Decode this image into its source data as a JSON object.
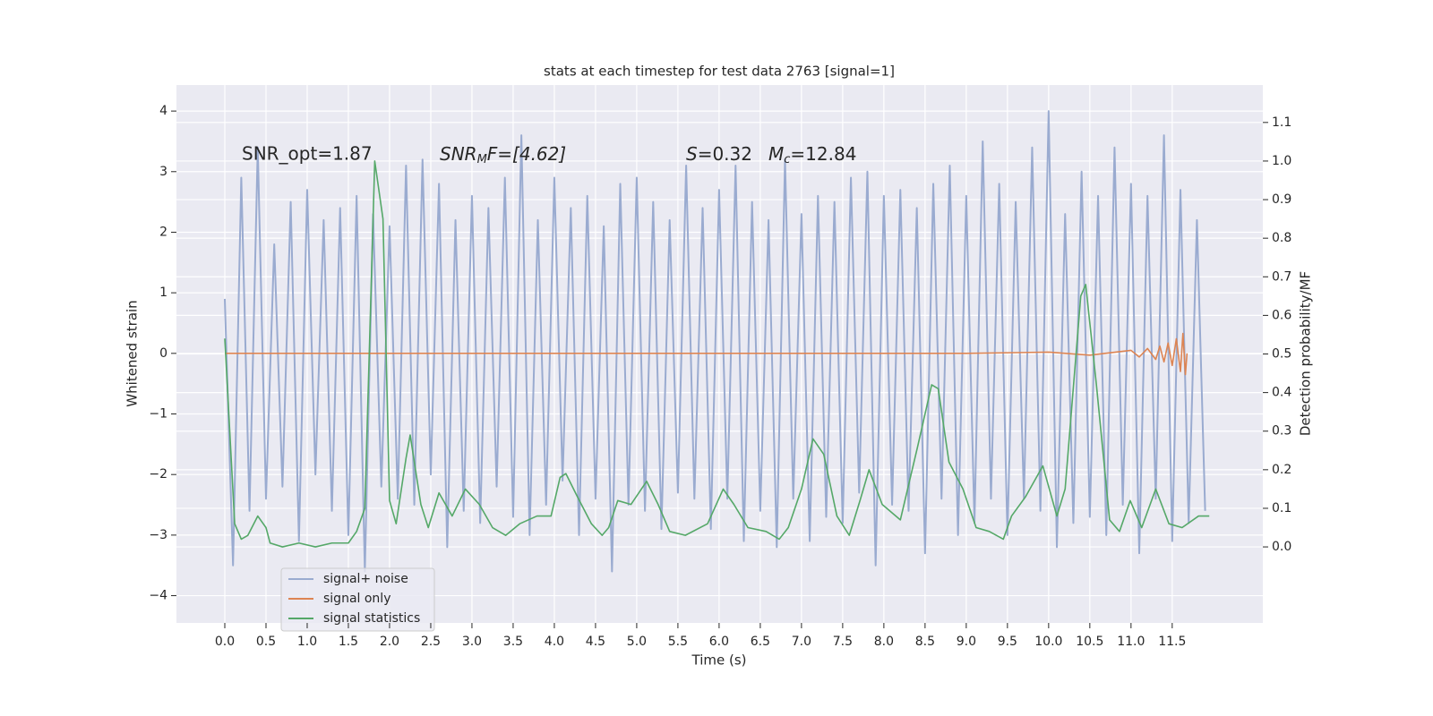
{
  "chart_data": {
    "type": "line",
    "title": "stats at each timestep for test data 2763 [signal=1]",
    "xlabel": "Time (s)",
    "ylabel": "Whitened strain",
    "y2label": "Detection probability/MF",
    "annotations": [
      "SNR_opt=1.87",
      [
        "SNR",
        "M",
        "F=[4.62]"
      ],
      [
        "S",
        "=0.32"
      ],
      [
        "M",
        "c",
        "=12.84"
      ]
    ],
    "xlim": [
      -0.587,
      12.6
    ],
    "ylim": [
      -4.45,
      4.43
    ],
    "y2lim": [
      -0.197,
      1.197
    ],
    "xticks": [
      {
        "value": 0,
        "label": "0.0"
      },
      0.5,
      {
        "value": 1,
        "label": "1.0"
      },
      1.5,
      {
        "value": 2,
        "label": "2.0"
      },
      2.5,
      {
        "value": 3,
        "label": "3.0"
      },
      3.5,
      {
        "value": 4,
        "label": "4.0"
      },
      4.5,
      {
        "value": 5,
        "label": "5.0"
      },
      5.5,
      {
        "value": 6,
        "label": "6.0"
      },
      6.5,
      {
        "value": 7,
        "label": "7.0"
      },
      7.5,
      {
        "value": 8,
        "label": "8.0"
      },
      8.5,
      {
        "value": 9,
        "label": "9.0"
      },
      9.5,
      {
        "value": 10,
        "label": "10.0"
      },
      10.5,
      {
        "value": 11,
        "label": "11.0"
      },
      11.5
    ],
    "yticks": [
      {
        "value": -4,
        "label": "−4"
      },
      {
        "value": -3,
        "label": "−3"
      },
      {
        "value": -2,
        "label": "−2"
      },
      {
        "value": -1,
        "label": "−1"
      },
      0,
      1,
      2,
      3,
      4
    ],
    "y2ticks": [
      {
        "value": 0,
        "label": "0.0"
      },
      0.1,
      0.2,
      0.3,
      0.4,
      0.5,
      0.6,
      0.7,
      0.8,
      0.9,
      {
        "value": 1,
        "label": "1.0"
      },
      1.1
    ],
    "grid": true,
    "legend": "lower left",
    "series": [
      {
        "name": "signal+ noise",
        "color": "#9aabd0",
        "x": [
          0,
          0.1,
          0.2,
          0.3,
          0.4,
          0.5,
          0.6,
          0.7,
          0.8,
          0.9,
          1,
          1.1,
          1.2,
          1.3,
          1.4,
          1.5,
          1.6,
          1.7,
          1.8,
          1.9,
          2,
          2.1,
          2.2,
          2.3,
          2.4,
          2.5,
          2.6,
          2.7,
          2.8,
          2.9,
          3,
          3.1,
          3.2,
          3.3,
          3.4,
          3.5,
          3.6,
          3.7,
          3.8,
          3.9,
          4,
          4.1,
          4.2,
          4.3,
          4.4,
          4.5,
          4.6,
          4.7,
          4.8,
          4.9,
          5,
          5.1,
          5.2,
          5.3,
          5.4,
          5.5,
          5.6,
          5.7,
          5.8,
          5.9,
          6,
          6.1,
          6.2,
          6.3,
          6.4,
          6.5,
          6.6,
          6.7,
          6.8,
          6.9,
          7,
          7.1,
          7.2,
          7.3,
          7.4,
          7.5,
          7.6,
          7.7,
          7.8,
          7.9,
          8,
          8.1,
          8.2,
          8.3,
          8.4,
          8.5,
          8.6,
          8.7,
          8.8,
          8.9,
          9,
          9.1,
          9.2,
          9.3,
          9.4,
          9.5,
          9.6,
          9.7,
          9.8,
          9.9,
          10,
          10.1,
          10.2,
          10.3,
          10.4,
          10.5,
          10.6,
          10.7,
          10.8,
          10.9,
          11,
          11.1,
          11.2,
          11.3,
          11.4,
          11.5,
          11.6,
          11.7,
          11.8,
          11.9
        ],
        "values": [
          0.9,
          -3.5,
          2.9,
          -2.6,
          3.4,
          -2.4,
          1.8,
          -2.2,
          2.5,
          -3.1,
          2.7,
          -2.0,
          2.2,
          -2.6,
          2.4,
          -3.0,
          2.6,
          -3.6,
          2.3,
          -2.2,
          2.1,
          -2.4,
          3.1,
          -2.5,
          3.2,
          -2.0,
          2.8,
          -3.2,
          2.2,
          -2.6,
          2.6,
          -2.8,
          2.4,
          -2.2,
          2.9,
          -2.7,
          3.6,
          -3.0,
          2.2,
          -2.5,
          2.9,
          -2.1,
          2.4,
          -3.0,
          2.6,
          -2.4,
          2.1,
          -3.6,
          2.8,
          -2.5,
          2.9,
          -2.6,
          2.5,
          -2.9,
          2.2,
          -2.3,
          3.1,
          -2.4,
          2.4,
          -2.9,
          2.7,
          -2.4,
          3.1,
          -3.1,
          2.5,
          -2.6,
          2.2,
          -3.2,
          3.2,
          -2.4,
          2.3,
          -3.1,
          2.6,
          -2.7,
          2.5,
          -2.8,
          2.9,
          -2.3,
          3.0,
          -3.5,
          2.6,
          -2.5,
          2.7,
          -2.6,
          2.4,
          -3.3,
          2.8,
          -2.4,
          3.1,
          -3.0,
          2.6,
          -2.8,
          3.5,
          -2.4,
          2.8,
          -3.0,
          2.5,
          -2.4,
          3.4,
          -2.6,
          4.0,
          -3.2,
          2.3,
          -2.8,
          3.0,
          -2.7,
          2.6,
          -3.0,
          3.4,
          -2.5,
          2.8,
          -3.3,
          2.6,
          -2.4,
          3.6,
          -3.1,
          2.7,
          -2.8,
          2.2,
          -2.6
        ]
      },
      {
        "name": "signal only",
        "color": "#dd8452",
        "x": [
          0,
          9,
          10,
          10.5,
          11,
          11.1,
          11.2,
          11.3,
          11.35,
          11.4,
          11.45,
          11.5,
          11.55,
          11.6,
          11.63,
          11.66,
          11.68
        ],
        "values": [
          0,
          0,
          0.02,
          -0.03,
          0.05,
          -0.06,
          0.08,
          -0.1,
          0.12,
          -0.14,
          0.17,
          -0.2,
          0.24,
          -0.3,
          0.33,
          -0.35,
          0
        ]
      },
      {
        "name": "signal statistics",
        "color": "#55a868",
        "axis": "y2",
        "x": [
          0,
          0.12,
          0.2,
          0.28,
          0.4,
          0.5,
          0.55,
          0.7,
          0.9,
          1.1,
          1.3,
          1.5,
          1.6,
          1.7,
          1.82,
          1.92,
          2.0,
          2.08,
          2.2,
          2.25,
          2.38,
          2.47,
          2.6,
          2.76,
          2.92,
          3.09,
          3.25,
          3.41,
          3.58,
          3.79,
          3.96,
          4.07,
          4.14,
          4.28,
          4.45,
          4.58,
          4.66,
          4.77,
          4.93,
          5.12,
          5.26,
          5.4,
          5.59,
          5.86,
          6.05,
          6.18,
          6.35,
          6.57,
          6.73,
          6.84,
          7.0,
          7.14,
          7.27,
          7.43,
          7.58,
          7.71,
          7.82,
          7.98,
          8.2,
          8.41,
          8.58,
          8.66,
          8.79,
          8.96,
          9.12,
          9.28,
          9.45,
          9.55,
          9.72,
          9.93,
          10.1,
          10.2,
          10.39,
          10.45,
          10.58,
          10.74,
          10.86,
          10.99,
          11.13,
          11.3,
          11.46,
          11.62,
          11.82,
          11.95
        ],
        "values": [
          0.54,
          0.06,
          0.02,
          0.03,
          0.08,
          0.05,
          0.01,
          0.0,
          0.01,
          0.0,
          0.01,
          0.01,
          0.04,
          0.1,
          1.0,
          0.85,
          0.12,
          0.06,
          0.23,
          0.29,
          0.11,
          0.05,
          0.14,
          0.08,
          0.15,
          0.11,
          0.05,
          0.03,
          0.06,
          0.08,
          0.08,
          0.18,
          0.19,
          0.13,
          0.06,
          0.03,
          0.05,
          0.12,
          0.11,
          0.17,
          0.11,
          0.04,
          0.03,
          0.06,
          0.15,
          0.11,
          0.05,
          0.04,
          0.02,
          0.05,
          0.15,
          0.28,
          0.24,
          0.08,
          0.03,
          0.12,
          0.2,
          0.11,
          0.07,
          0.26,
          0.42,
          0.41,
          0.22,
          0.15,
          0.05,
          0.04,
          0.02,
          0.08,
          0.13,
          0.21,
          0.08,
          0.15,
          0.65,
          0.68,
          0.42,
          0.07,
          0.04,
          0.12,
          0.05,
          0.15,
          0.06,
          0.05,
          0.08,
          0.08
        ]
      }
    ]
  }
}
